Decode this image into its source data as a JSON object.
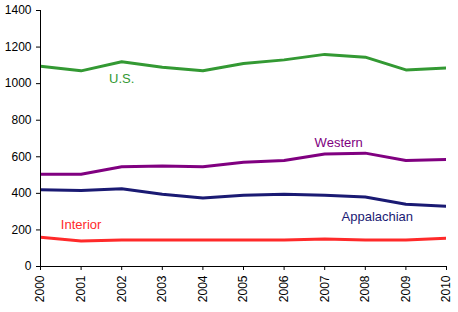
{
  "chart_data": {
    "type": "line",
    "x": [
      2000,
      2001,
      2002,
      2003,
      2004,
      2005,
      2006,
      2007,
      2008,
      2009,
      2010
    ],
    "series": [
      {
        "name": "U.S.",
        "color": "#339933",
        "values": [
          1095,
          1070,
          1120,
          1090,
          1070,
          1110,
          1130,
          1160,
          1145,
          1075,
          1085
        ]
      },
      {
        "name": "Western",
        "color": "#800080",
        "values": [
          505,
          505,
          545,
          550,
          545,
          570,
          580,
          615,
          620,
          580,
          585
        ]
      },
      {
        "name": "Appalachian",
        "color": "#1a1a73",
        "values": [
          420,
          415,
          425,
          395,
          375,
          390,
          395,
          390,
          380,
          340,
          330
        ]
      },
      {
        "name": "Interior",
        "color": "#ff2a2a",
        "values": [
          160,
          140,
          145,
          145,
          145,
          145,
          145,
          150,
          145,
          145,
          155
        ]
      }
    ],
    "xlim": [
      2000,
      2010
    ],
    "xticks": [
      2000,
      2001,
      2002,
      2003,
      2004,
      2005,
      2006,
      2007,
      2008,
      2009,
      2010
    ],
    "ylim": [
      0,
      1400
    ],
    "yticks": [
      0,
      200,
      400,
      600,
      800,
      1000,
      1200,
      1400
    ],
    "grid": false
  }
}
